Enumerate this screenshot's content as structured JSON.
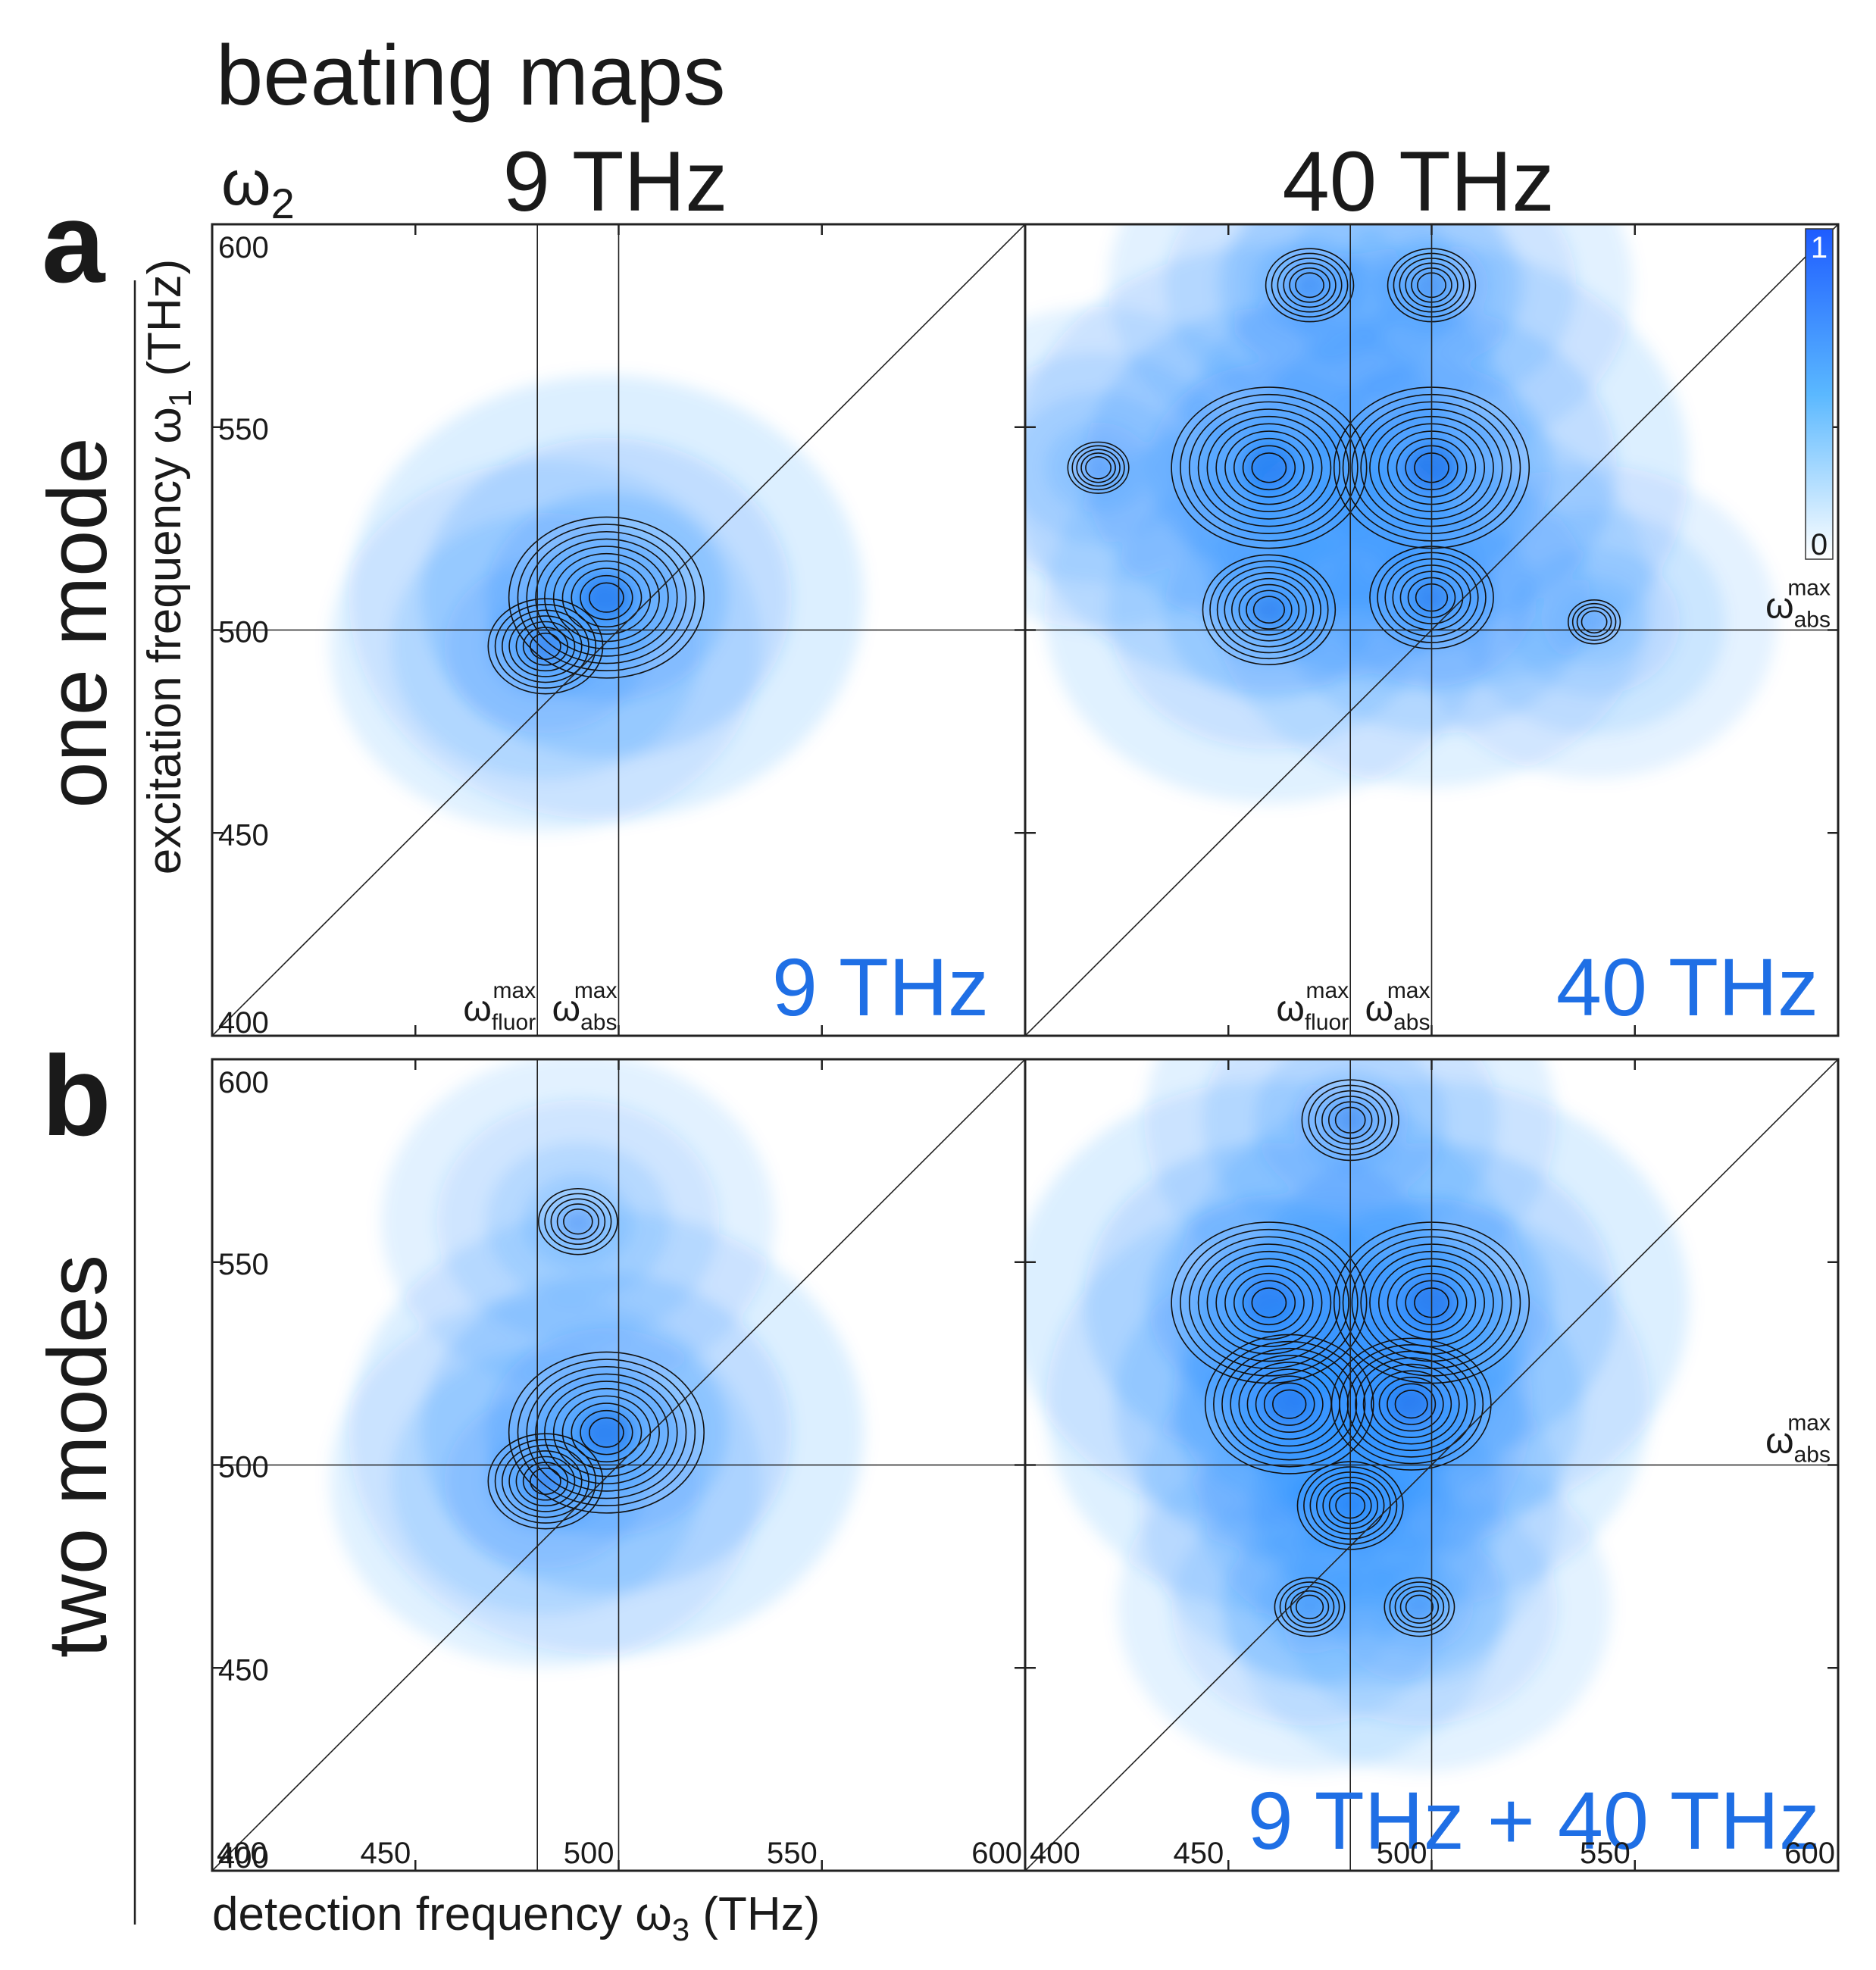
{
  "figure": {
    "title": "beating maps",
    "omega2_symbol": "ω",
    "omega2_sub": "2",
    "col_titles": [
      "9 THz",
      "40 THz"
    ],
    "row_letters": [
      "a",
      "b"
    ],
    "row_titles": [
      "one mode",
      "two modes"
    ],
    "ylabel": {
      "text": "excitation frequency ",
      "symbol": "ω",
      "sub": "1",
      "unit": " (THz)"
    },
    "xlabel": {
      "text": "detection frequency ",
      "symbol": "ω",
      "sub": "3",
      "unit": " (THz)"
    },
    "guide_labels": {
      "omega": "ω",
      "max": "max",
      "fluor": "fluor",
      "abs": "abs"
    },
    "colorbar": {
      "max_label": "1",
      "min_label": "0",
      "color": "#1e6cff"
    }
  },
  "chart_data": [
    {
      "type": "heatmap",
      "panel": "a-left",
      "title": "9 THz",
      "xlabel": "detection frequency ω3 (THz)",
      "ylabel": "excitation frequency ω1 (THz)",
      "xlim": [
        400,
        600
      ],
      "ylim": [
        400,
        600
      ],
      "yticks": [
        "600",
        "550",
        "500",
        "450",
        "400"
      ],
      "xticks": [],
      "omega_fluor_max": 480,
      "omega_abs_max": 500,
      "inset_label": "9 THz",
      "peaks": [
        {
          "x": 497,
          "y": 508,
          "amplitude": 1.0
        },
        {
          "x": 482,
          "y": 496,
          "amplitude": 0.55
        }
      ],
      "colormap": "white-blue",
      "colorbar_range": [
        0,
        1
      ]
    },
    {
      "type": "heatmap",
      "panel": "a-right",
      "title": "40 THz",
      "xlabel": "detection frequency ω3 (THz)",
      "ylabel": "excitation frequency ω1 (THz)",
      "xlim": [
        400,
        600
      ],
      "ylim": [
        400,
        600
      ],
      "yticks": [],
      "xticks": [],
      "omega_fluor_max": 480,
      "omega_abs_max": 500,
      "inset_label": "40 THz",
      "peaks": [
        {
          "x": 460,
          "y": 540,
          "amplitude": 1.0
        },
        {
          "x": 500,
          "y": 540,
          "amplitude": 1.0
        },
        {
          "x": 460,
          "y": 505,
          "amplitude": 0.65
        },
        {
          "x": 500,
          "y": 508,
          "amplitude": 0.6
        },
        {
          "x": 470,
          "y": 585,
          "amplitude": 0.4
        },
        {
          "x": 500,
          "y": 585,
          "amplitude": 0.4
        },
        {
          "x": 418,
          "y": 540,
          "amplitude": 0.25
        },
        {
          "x": 540,
          "y": 502,
          "amplitude": 0.2
        }
      ],
      "colormap": "white-blue",
      "colorbar_range": [
        0,
        1
      ]
    },
    {
      "type": "heatmap",
      "panel": "b-left",
      "title": "",
      "xlabel": "detection frequency ω3 (THz)",
      "ylabel": "excitation frequency ω1 (THz)",
      "xlim": [
        400,
        600
      ],
      "ylim": [
        400,
        600
      ],
      "yticks": [
        "600",
        "550",
        "500",
        "450",
        "400"
      ],
      "xticks": [
        "400",
        "450",
        "500",
        "550",
        "600"
      ],
      "omega_fluor_max": 480,
      "omega_abs_max": 500,
      "inset_label": "",
      "peaks": [
        {
          "x": 497,
          "y": 508,
          "amplitude": 1.0
        },
        {
          "x": 482,
          "y": 496,
          "amplitude": 0.55
        },
        {
          "x": 490,
          "y": 560,
          "amplitude": 0.35
        }
      ],
      "colormap": "white-blue",
      "colorbar_range": [
        0,
        1
      ]
    },
    {
      "type": "heatmap",
      "panel": "b-right",
      "title": "",
      "xlabel": "detection frequency ω3 (THz)",
      "ylabel": "excitation frequency ω1 (THz)",
      "xlim": [
        400,
        600
      ],
      "ylim": [
        400,
        600
      ],
      "yticks": [],
      "xticks": [
        "400",
        "450",
        "500",
        "550",
        "600"
      ],
      "omega_fluor_max": 480,
      "omega_abs_max": 500,
      "inset_label": "9 THz + 40 THz",
      "peaks": [
        {
          "x": 460,
          "y": 540,
          "amplitude": 1.0
        },
        {
          "x": 500,
          "y": 540,
          "amplitude": 1.0
        },
        {
          "x": 465,
          "y": 515,
          "amplitude": 0.85
        },
        {
          "x": 495,
          "y": 515,
          "amplitude": 0.8
        },
        {
          "x": 480,
          "y": 585,
          "amplitude": 0.45
        },
        {
          "x": 480,
          "y": 490,
          "amplitude": 0.5
        },
        {
          "x": 470,
          "y": 465,
          "amplitude": 0.3
        },
        {
          "x": 497,
          "y": 465,
          "amplitude": 0.3
        }
      ],
      "colormap": "white-blue",
      "colorbar_range": [
        0,
        1
      ]
    }
  ]
}
